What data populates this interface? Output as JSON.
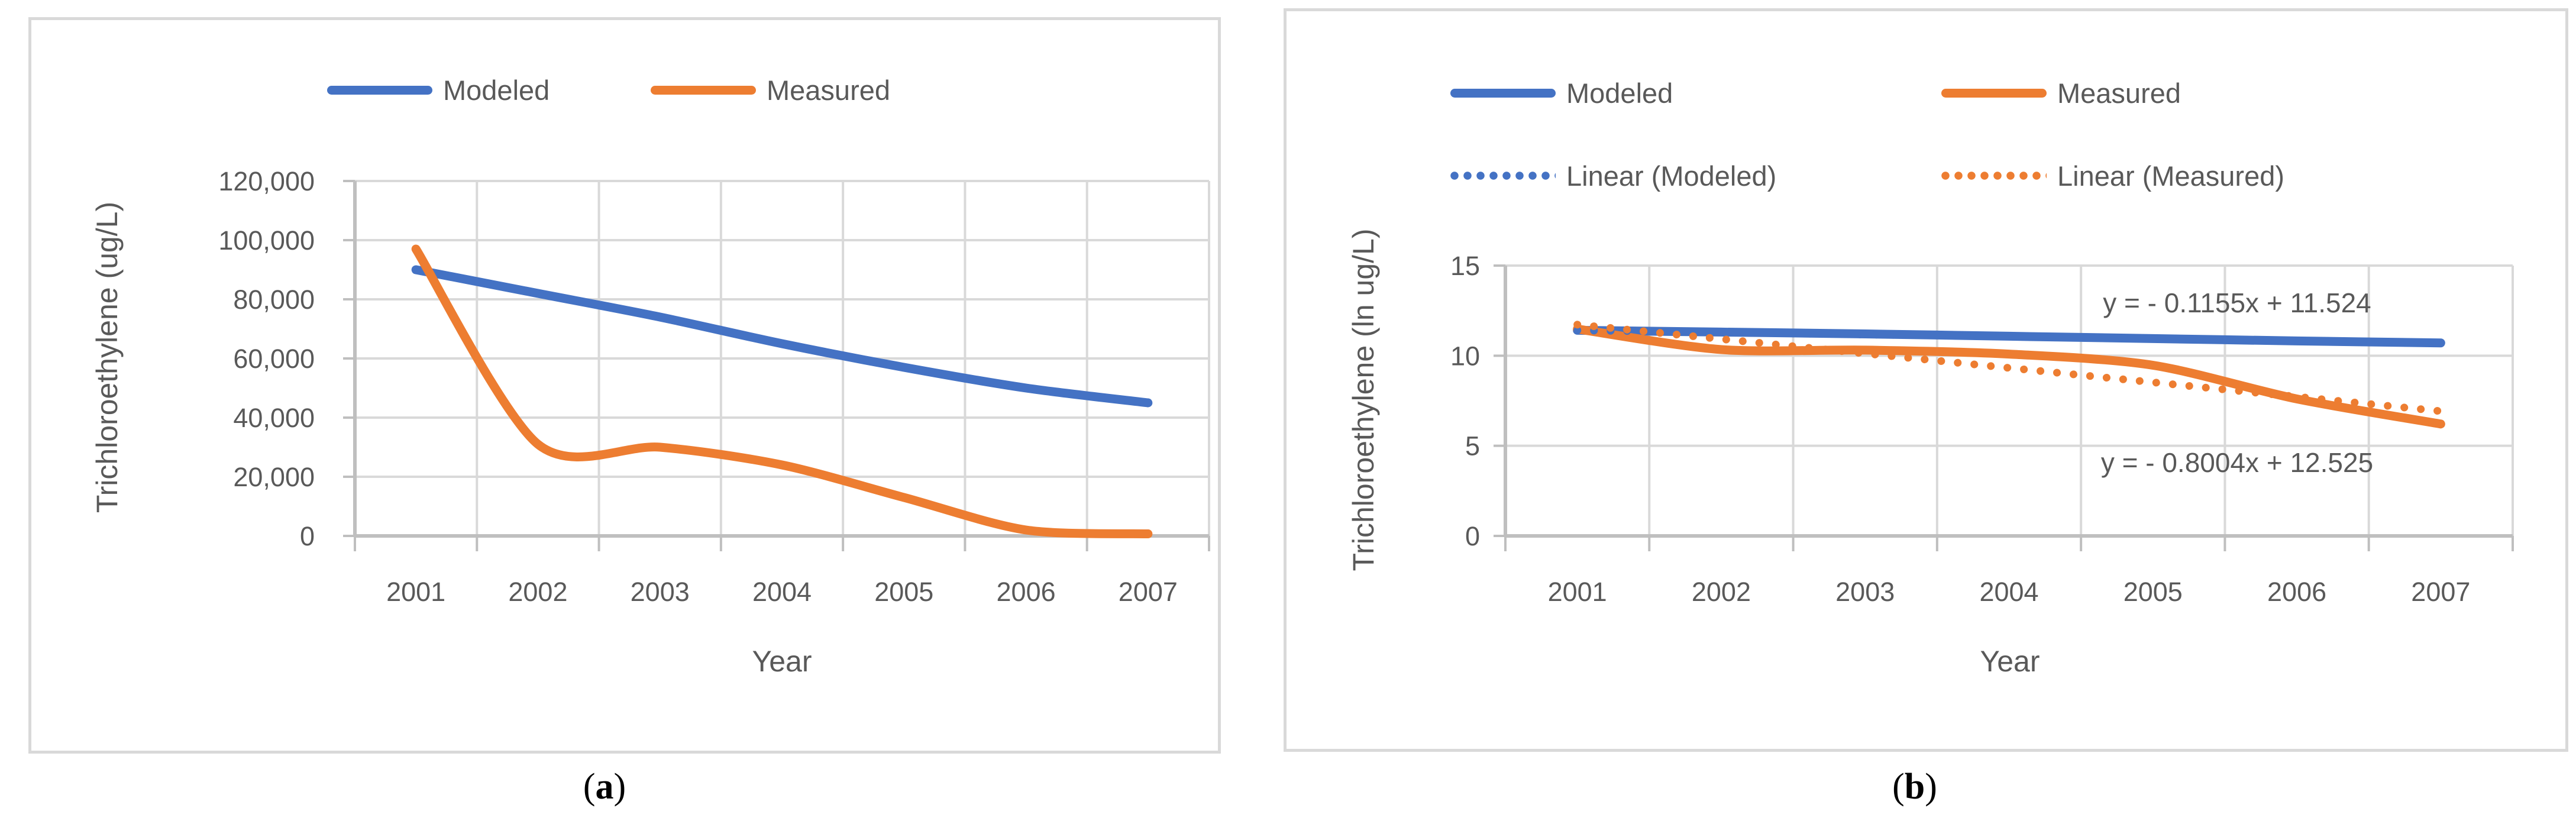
{
  "colors": {
    "modeled": "#4472C4",
    "measured": "#ED7D31",
    "axis_text": "#595959",
    "gridline": "#D9D9D9",
    "axis_line": "#BFBFBF",
    "panel_border": "#D9D9D9"
  },
  "chart_data": [
    {
      "id": "a",
      "type": "line",
      "caption": {
        "open": "(",
        "letter": "a",
        "close": ")"
      },
      "xlabel": "Year",
      "ylabel": "Trichloroethylene (ug/L)",
      "categories": [
        "2001",
        "2002",
        "2003",
        "2004",
        "2005",
        "2006",
        "2007"
      ],
      "ylim": [
        0,
        120000
      ],
      "ytick_step": 20000,
      "ytick_labels": [
        "0",
        "20,000",
        "40,000",
        "60,000",
        "80,000",
        "100,000",
        "120,000"
      ],
      "grid": true,
      "legend_position": "top",
      "series": [
        {
          "name": "Modeled",
          "color": "#4472C4",
          "style": "solid",
          "smooth": true,
          "values": [
            90000,
            82000,
            74000,
            65000,
            57000,
            50000,
            45000
          ]
        },
        {
          "name": "Measured",
          "color": "#ED7D31",
          "style": "solid",
          "smooth": true,
          "values": [
            97000,
            31000,
            30000,
            24000,
            13000,
            2000,
            700
          ]
        }
      ]
    },
    {
      "id": "b",
      "type": "line",
      "caption": {
        "open": "(",
        "letter": "b",
        "close": ")"
      },
      "xlabel": "Year",
      "ylabel": "Trichloroethylene (ln ug/L)",
      "categories": [
        "2001",
        "2002",
        "2003",
        "2004",
        "2005",
        "2006",
        "2007"
      ],
      "ylim": [
        0,
        15
      ],
      "ytick_step": 5,
      "ytick_labels": [
        "0",
        "5",
        "10",
        "15"
      ],
      "grid": true,
      "legend_position": "top",
      "series": [
        {
          "name": "Modeled",
          "color": "#4472C4",
          "style": "solid",
          "smooth": true,
          "values": [
            11.41,
            11.31,
            11.21,
            11.08,
            10.95,
            10.82,
            10.71
          ]
        },
        {
          "name": "Measured",
          "color": "#ED7D31",
          "style": "solid",
          "smooth": true,
          "values": [
            11.48,
            10.34,
            10.31,
            10.09,
            9.47,
            7.6,
            6.21
          ]
        }
      ],
      "trendlines": [
        {
          "name": "Linear (Modeled)",
          "color": "#4472C4",
          "style": "dotted",
          "slope": -0.1155,
          "intercept": 11.524,
          "equation": "y = - 0.1155x + 11.524"
        },
        {
          "name": "Linear (Measured)",
          "color": "#ED7D31",
          "style": "dotted",
          "slope": -0.8004,
          "intercept": 12.525,
          "equation": "y = - 0.8004x + 12.525"
        }
      ],
      "annotations": [
        {
          "text": "y = - 0.1155x + 11.524"
        },
        {
          "text": "y = - 0.8004x + 12.525"
        }
      ]
    }
  ]
}
